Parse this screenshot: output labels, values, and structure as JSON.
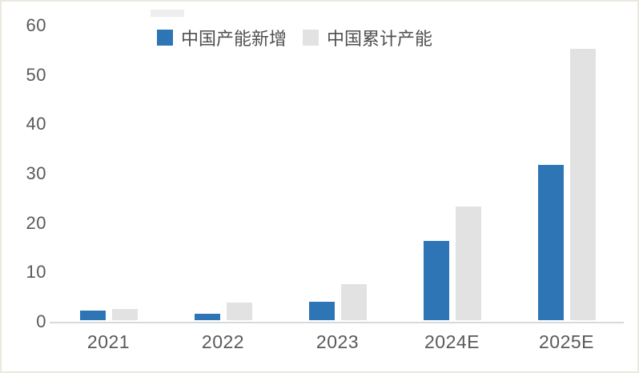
{
  "frame": {
    "background_color": "#ffffff",
    "border_color": "#ece8e1"
  },
  "colors": {
    "series_new_capacity": "#2E75B6",
    "series_cumulative_capacity": "#E2E2E2",
    "axis_line": "#D9D9D9",
    "tick_label": "#595959",
    "legend_text": "#4F4F4F"
  },
  "legend": {
    "position": "top",
    "items": [
      {
        "label": "中国产能新增",
        "color": "#2E75B6"
      },
      {
        "label": "中国累计产能",
        "color": "#E2E2E2"
      }
    ]
  },
  "chart_data": {
    "type": "bar",
    "title": "",
    "xlabel": "",
    "ylabel": "",
    "categories": [
      "2021",
      "2022",
      "2023",
      "2024E",
      "2025E"
    ],
    "series": [
      {
        "name": "中国产能新增",
        "color": "#2E75B6",
        "values": [
          2.0,
          1.3,
          3.8,
          16.0,
          31.5
        ]
      },
      {
        "name": "中国累计产能",
        "color": "#E2E2E2",
        "values": [
          2.3,
          3.5,
          7.3,
          23.0,
          55.0
        ]
      }
    ],
    "ylim": [
      0,
      60
    ],
    "yticks": [
      0,
      10,
      20,
      30,
      40,
      50,
      60
    ],
    "grid": false,
    "legend_position": "top"
  }
}
